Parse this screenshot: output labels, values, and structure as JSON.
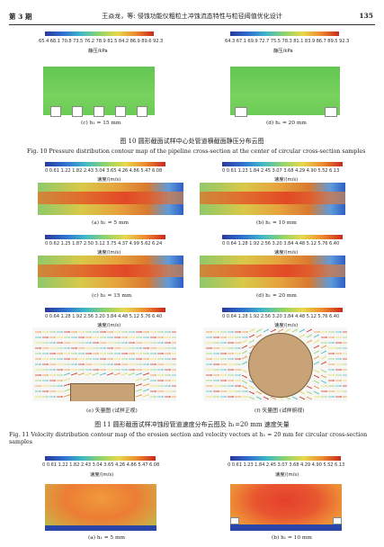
{
  "header": {
    "issue": "第 3 期",
    "title": "王焱龙，等: 侵蚀功能仪粗粒土冲蚀流态特性与粒径阈值优化设计",
    "page_number": "135"
  },
  "fig10": {
    "colorbar_c_ticks": "65.4 68.1 70.8 73.5 76.2 78.9 81.5 84.2 86.9 89.6 92.3",
    "colorbar_d_ticks": "64.3 67.1 69.9 72.7 75.5 78.3 81.1 83.9 86.7 89.5 92.3",
    "unit": "静压/kPa",
    "sub_c": "(c) h₁ = 15 mm",
    "sub_d": "(d) h₁ = 20 mm",
    "caption_cn": "图 10   圆形截面试样中心处管道横截面静压分布云图",
    "caption_en": "Fig. 10    Pressure distribution contour map of the pipeline cross-section at the center of circular cross-section samples"
  },
  "fig11": {
    "cb_a_ticks": "0  0.61 1.22 1.82 2.43 3.04 3.65 4.26 4.86 5.47 6.08",
    "cb_b_ticks": "0  0.61 1.23 1.84 2.45 3.07 3.68 4.29 4.90 5.52 6.13",
    "cb_c_ticks": "0  0.62 1.25 1.87 2.50 3.12 3.75 4.37 4.99 5.62 6.24",
    "cb_d_ticks": "0  0.64 1.28 1.92 2.56 3.20 3.84 4.48 5.12 5.76 6.40",
    "cb_e_ticks": "0  0.64 1.28 1.92 2.56 3.20 3.84 4.48 5.12 5.76 6.40",
    "cb_f_ticks": "0  0.64 1.28 1.92 2.56 3.20 3.84 4.48 5.12 5.76 6.40",
    "unit": "速度/(m/s)",
    "sub_a": "(a) h₁ = 5 mm",
    "sub_b": "(b) h₁ = 10 mm",
    "sub_c": "(c) h₁ = 15 mm",
    "sub_d": "(d) h₁ = 20 mm",
    "sub_e": "(e) 矢量图 (试样正视)",
    "sub_f": "(f) 矢量图 (试样俯视)",
    "caption_cn": "图 11   圆形截面试样冲蚀段管道速度分布云图及 h₁=20 mm 速度矢量",
    "caption_en": "Fig. 11    Velocity distribution contour map of the erosion section and velocity vectors at h₁ = 20 mm for circular cross-section samples"
  },
  "fig12": {
    "cb_a_ticks": "0  0.61 1.22 1.82 2.43 3.04 3.65 4.26 4.86 5.47 6.08",
    "cb_b_ticks": "0  0.61 1.23 1.84 2.45 3.07 3.68 4.29 4.90 5.52 6.13",
    "unit": "速度/(m/s)",
    "sub_a": "(a) h₁ = 5 mm",
    "sub_b": "(b) h₁ = 10 mm"
  },
  "colors": {
    "colormap": [
      "#2a3a9c",
      "#2f6fd1",
      "#3fb8c9",
      "#8fd46a",
      "#e8d84a",
      "#ee8a2e",
      "#c9281e"
    ],
    "sample": "#c8a377",
    "pressure_field": "#6bcc56"
  }
}
